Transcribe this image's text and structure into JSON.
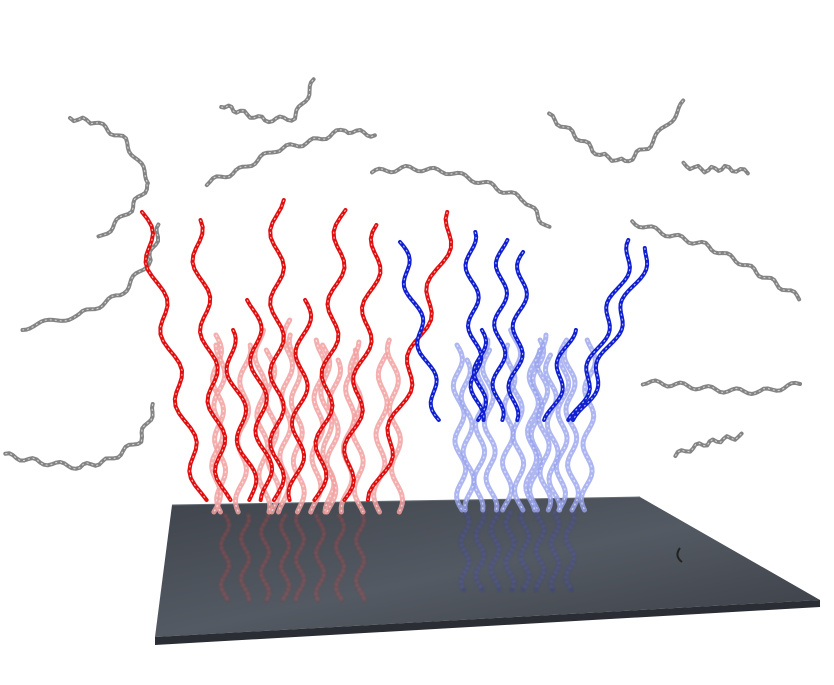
{
  "scene": {
    "colors": {
      "background": "#ffffff",
      "surface": "#4a4f57",
      "surface_edge": "#2a2d33",
      "group_left": "#e01010",
      "group_left_faded": "#f2a0a0",
      "group_right": "#1020d0",
      "group_right_faded": "#98a4ee",
      "free_strand": "#777777"
    }
  }
}
